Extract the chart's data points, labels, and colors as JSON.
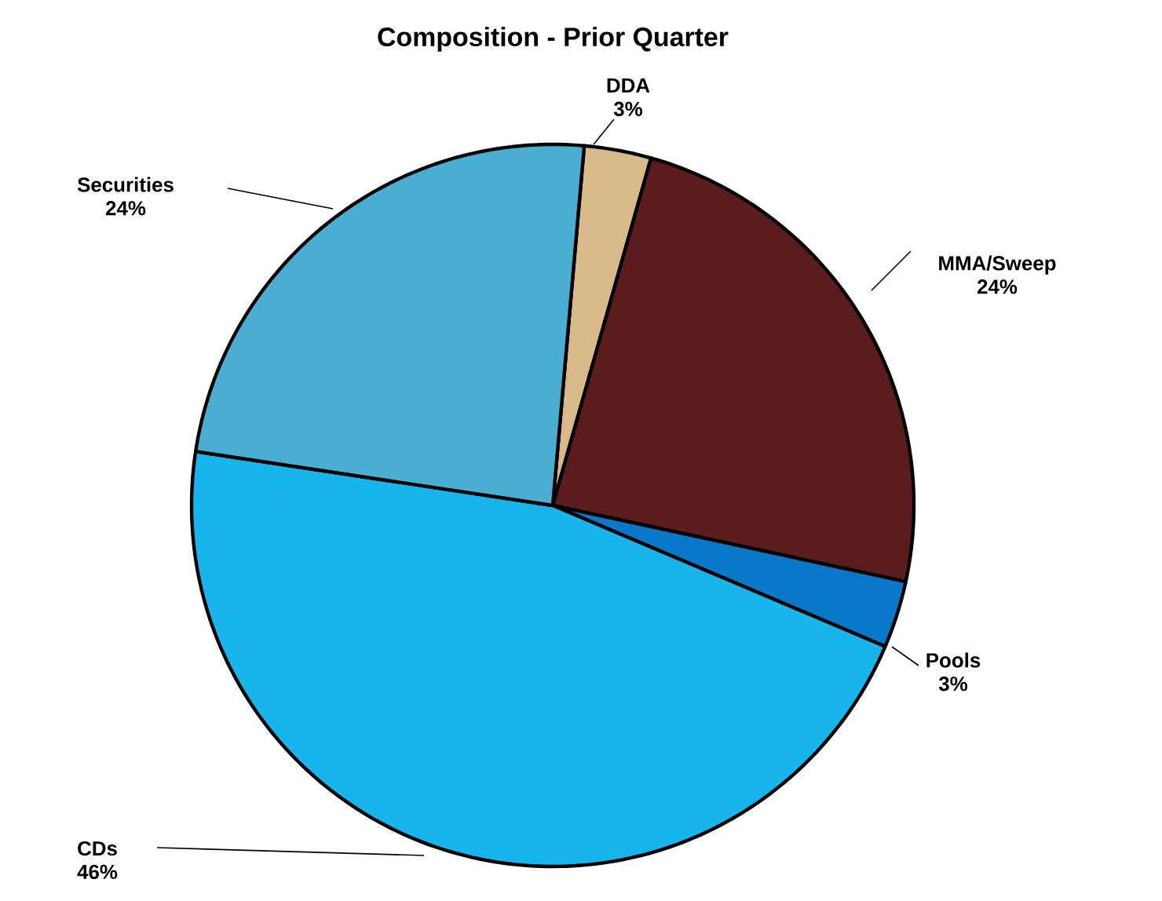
{
  "chart_data": {
    "type": "pie",
    "title": "Composition - Prior Quarter",
    "categories": [
      "DDA",
      "MMA/Sweep",
      "Pools",
      "CDs",
      "Securities"
    ],
    "values": [
      3,
      24,
      3,
      46,
      24
    ],
    "value_labels": [
      "3%",
      "24%",
      "3%",
      "46%",
      "24%"
    ],
    "colors": [
      "#d8b98a",
      "#5a1c1c",
      "#0a78c8",
      "#18b4ec",
      "#4aaed2"
    ]
  }
}
